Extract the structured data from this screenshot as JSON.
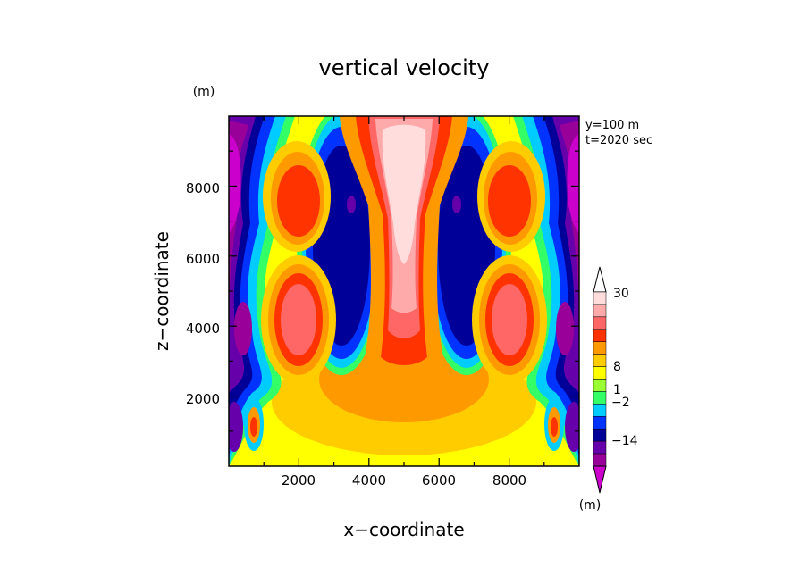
{
  "chart_data": {
    "type": "heatmap",
    "title": "vertical velocity",
    "xlabel": "x−coordinate",
    "ylabel": "z−coordinate",
    "x_unit": "(m)",
    "y_unit": "(m)",
    "info_lines": [
      "y=100 m",
      "t=2020 sec"
    ],
    "xlim": [
      0,
      10000
    ],
    "ylim": [
      0,
      10000
    ],
    "x_ticks": [
      2000,
      4000,
      6000,
      8000
    ],
    "y_ticks": [
      2000,
      4000,
      6000,
      8000
    ],
    "x_tick_labels": [
      "2000",
      "4000",
      "6000",
      "8000"
    ],
    "y_tick_labels": [
      "2000",
      "4000",
      "6000",
      "8000"
    ],
    "grid": false,
    "colorbar": {
      "unit_label": "(m)",
      "colors": [
        "#cc00cc",
        "#990099",
        "#6600aa",
        "#000099",
        "#0033ff",
        "#00ccff",
        "#33ff66",
        "#99ff33",
        "#ffff00",
        "#ffcc00",
        "#ff9900",
        "#ff3300",
        "#ff6666",
        "#ffaaaa",
        "#ffdddd",
        "#ffffff"
      ],
      "labels": [
        {
          "text": "30",
          "value": 30
        },
        {
          "text": "8",
          "value": 8
        },
        {
          "text": "1",
          "value": 1
        },
        {
          "text": "−2",
          "value": -2
        },
        {
          "text": "−14",
          "value": -14
        }
      ]
    },
    "features": [
      {
        "name": "central updraft",
        "x": 5000,
        "z": 7200,
        "level": "max (>=30)"
      },
      {
        "name": "left downdraft",
        "x": 3500,
        "z": 6700,
        "level": "min (about -14)"
      },
      {
        "name": "right downdraft",
        "x": 6500,
        "z": 6700,
        "level": "min (about -14)"
      },
      {
        "name": "left upper updraft",
        "x": 2000,
        "z": 7600,
        "level": "about 8"
      },
      {
        "name": "right upper updraft",
        "x": 8000,
        "z": 7600,
        "level": "about 8"
      },
      {
        "name": "left lower updraft",
        "x": 2000,
        "z": 4000,
        "level": "about 30"
      },
      {
        "name": "right lower updraft",
        "x": 8000,
        "z": 4000,
        "level": "about 30"
      },
      {
        "name": "left edge downdraft",
        "x": 300,
        "z": 8000,
        "level": "below -14"
      },
      {
        "name": "right edge downdraft",
        "x": 9700,
        "z": 8000,
        "level": "below -14"
      }
    ]
  }
}
